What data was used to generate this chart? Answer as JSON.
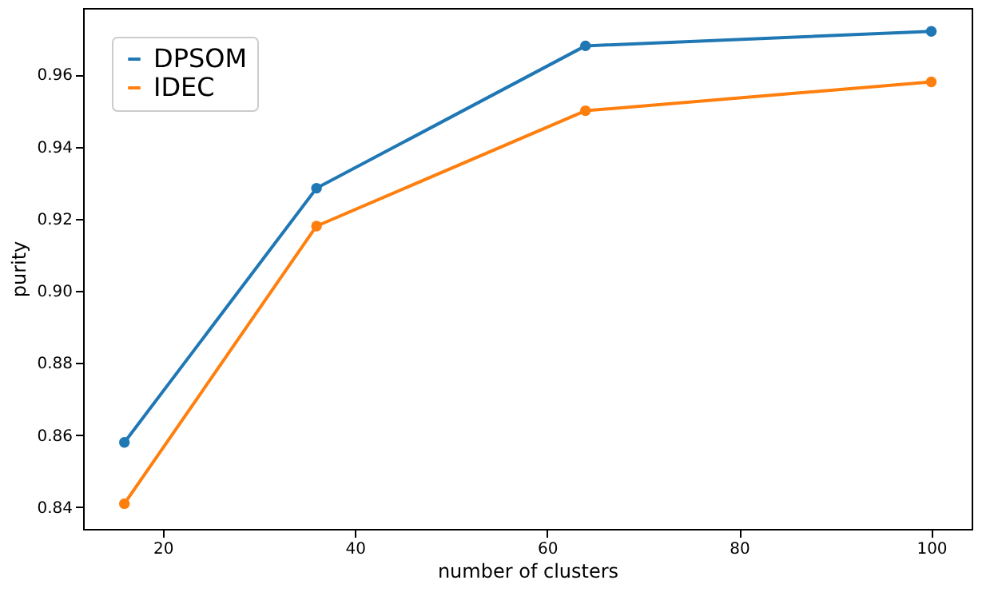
{
  "chart_data": {
    "type": "line",
    "xlabel": "number of clusters",
    "ylabel": "purity",
    "x": [
      16,
      36,
      64,
      100
    ],
    "series": [
      {
        "name": "DPSOM",
        "color": "#1f77b4",
        "values": [
          0.858,
          0.9285,
          0.968,
          0.972
        ]
      },
      {
        "name": "IDEC",
        "color": "#ff7f0e",
        "values": [
          0.841,
          0.918,
          0.95,
          0.958
        ]
      }
    ],
    "xlim": [
      11.7,
      104.2
    ],
    "xticks": [
      20,
      40,
      60,
      80,
      100
    ],
    "ylim": [
      0.834,
      0.9785
    ],
    "yticks": [
      {
        "value": 0.84,
        "label": "0.84"
      },
      {
        "value": 0.86,
        "label": "0.86"
      },
      {
        "value": 0.88,
        "label": "0.88"
      },
      {
        "value": 0.9,
        "label": "0.90"
      },
      {
        "value": 0.92,
        "label": "0.92"
      },
      {
        "value": 0.94,
        "label": "0.94"
      },
      {
        "value": 0.96,
        "label": "0.96"
      }
    ],
    "grid": false,
    "legend": "top left",
    "marker": "circle",
    "line_style": "solid"
  }
}
